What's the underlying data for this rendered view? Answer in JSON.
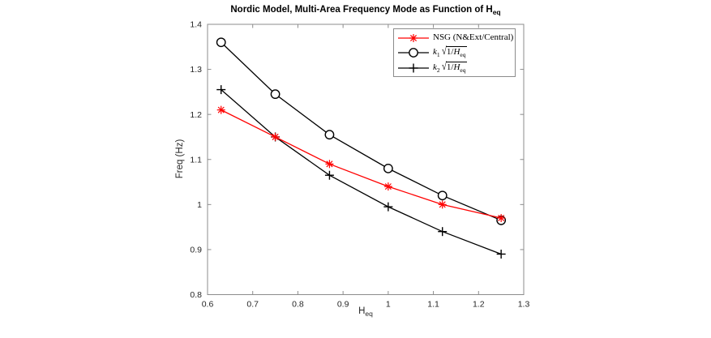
{
  "figure": {
    "title": {
      "text": "Nordic Model, Multi-Area Frequency Mode as Function of H",
      "sub": "eq"
    },
    "xlabel": {
      "text": "H",
      "sub": "eq"
    },
    "ylabel": "Freq (Hz)"
  },
  "chart_data": {
    "type": "line",
    "title": "Nordic Model, Multi-Area Frequency Mode as Function of H_eq",
    "xlabel": "H_eq",
    "ylabel": "Freq (Hz)",
    "xlim": [
      0.6,
      1.3
    ],
    "ylim": [
      0.8,
      1.4
    ],
    "xticks": [
      "0.6",
      "0.7",
      "0.8",
      "0.9",
      "1",
      "1.1",
      "1.2",
      "1.3"
    ],
    "yticks": [
      "0.8",
      "0.9",
      "1",
      "1.1",
      "1.2",
      "1.3",
      "1.4"
    ],
    "grid": false,
    "legend_position": "top-right-inside",
    "x": [
      0.63,
      0.75,
      0.87,
      1.0,
      1.12,
      1.25
    ],
    "series": [
      {
        "name": "NSG (N&Ext/Central)",
        "marker": "asterisk",
        "color": "#ff0000",
        "values": [
          1.21,
          1.15,
          1.09,
          1.04,
          1.0,
          0.97
        ]
      },
      {
        "name": "k_1*sqrt(1/H_eq)",
        "marker": "circle",
        "color": "#000000",
        "values": [
          1.36,
          1.245,
          1.155,
          1.08,
          1.02,
          0.965
        ]
      },
      {
        "name": "k_2*sqrt(1/H_eq)",
        "marker": "plus",
        "color": "#000000",
        "values": [
          1.255,
          1.15,
          1.065,
          0.995,
          0.94,
          0.89
        ]
      }
    ],
    "legend": [
      {
        "kind": "text",
        "text": "NSG (N&Ext/Central)"
      },
      {
        "kind": "math",
        "lead": "k",
        "lead_sub": "1",
        "radicand_pre": "1/",
        "radicand_var": "H",
        "radicand_sub": "eq"
      },
      {
        "kind": "math",
        "lead": "k",
        "lead_sub": "2",
        "radicand_pre": "1/",
        "radicand_var": "H",
        "radicand_sub": "eq"
      }
    ]
  },
  "colors": {
    "background": "#ffffff",
    "axis_box": "#8c8c8c",
    "tick_label": "#262626",
    "title": "#000000",
    "nsg_red": "#ff0000",
    "series_black": "#000000"
  },
  "icons": {
    "sqrt_radical": "√"
  }
}
